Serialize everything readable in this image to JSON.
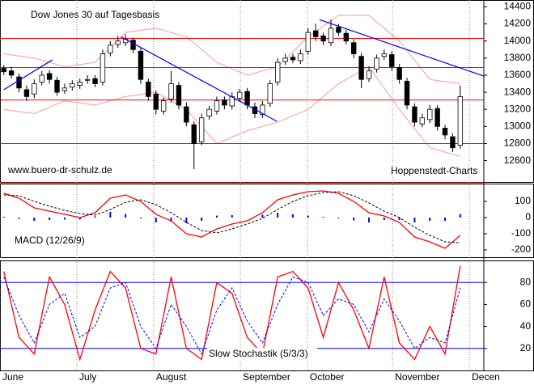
{
  "chart_data": [
    {
      "type": "candlestick",
      "title": "Dow Jones 30 auf Tagesbasis",
      "source": "www.buero-dr-schulz.de",
      "credit": "Hoppenstedt-Charts",
      "ylim": [
        12350,
        14480
      ],
      "yticks": [
        12600,
        12800,
        13000,
        13200,
        13400,
        13600,
        13800,
        14000,
        14200,
        14400
      ],
      "up_color": "#ffffff",
      "down_color": "#000000",
      "open": [
        13680,
        13650,
        13580,
        13430,
        13380,
        13520,
        13620,
        13540,
        13420,
        13460,
        13480,
        13540,
        13560,
        13520,
        13860,
        13960,
        13980,
        14010,
        13880,
        13520,
        13380,
        13180,
        13320,
        13480,
        13230,
        13020,
        12820,
        13120,
        13180,
        13310,
        13240,
        13330,
        13410,
        13230,
        13140,
        13270,
        13520,
        13760,
        13810,
        13770,
        13880,
        14120,
        14060,
        13980,
        14160,
        14090,
        13980,
        13820,
        13560,
        13670,
        13820,
        13840,
        13690,
        13530,
        13230,
        13030,
        13080,
        13210,
        12980,
        12880,
        12780
      ],
      "high": [
        13720,
        13700,
        13620,
        13480,
        13550,
        13650,
        13660,
        13580,
        13500,
        13540,
        13560,
        13600,
        13600,
        13900,
        14000,
        14060,
        14080,
        14040,
        13920,
        13560,
        13420,
        13340,
        13650,
        13520,
        13280,
        13060,
        13150,
        13240,
        13350,
        13350,
        13400,
        13440,
        13450,
        13280,
        13300,
        13540,
        13800,
        13850,
        13850,
        13900,
        14150,
        14200,
        14100,
        14250,
        14200,
        14130,
        14020,
        13860,
        13700,
        13840,
        13900,
        13880,
        13730,
        13570,
        13270,
        13150,
        13250,
        13250,
        13020,
        12920,
        13480
      ],
      "low": [
        13600,
        13560,
        13400,
        13300,
        13330,
        13480,
        13500,
        13360,
        13380,
        13420,
        13440,
        13500,
        13460,
        13480,
        13820,
        13920,
        13940,
        13860,
        13500,
        13300,
        13140,
        13140,
        13280,
        13200,
        13000,
        12500,
        12780,
        13080,
        13140,
        13200,
        13200,
        13290,
        13200,
        13100,
        13100,
        13230,
        13480,
        13720,
        13740,
        13730,
        13840,
        14000,
        13950,
        13940,
        14060,
        13960,
        13800,
        13450,
        13520,
        13630,
        13780,
        13650,
        13500,
        13200,
        13000,
        12990,
        13040,
        12950,
        12850,
        12700,
        12740
      ],
      "close": [
        13640,
        13600,
        13450,
        13350,
        13500,
        13600,
        13550,
        13400,
        13450,
        13500,
        13520,
        13550,
        13500,
        13850,
        13950,
        14000,
        14020,
        13900,
        13550,
        13350,
        13200,
        13300,
        13500,
        13250,
        13050,
        12800,
        13100,
        13200,
        13300,
        13250,
        13350,
        13400,
        13250,
        13150,
        13250,
        13500,
        13750,
        13800,
        13780,
        13850,
        14100,
        14050,
        14000,
        14150,
        14100,
        14000,
        13850,
        13550,
        13650,
        13800,
        13850,
        13700,
        13550,
        13250,
        13050,
        13100,
        13200,
        13000,
        12900,
        12750,
        13350
      ],
      "bands": {
        "color": "#ff9999",
        "x": [
          0,
          4,
          8,
          12,
          16,
          20,
          24,
          28,
          32,
          36,
          40,
          44,
          48,
          52,
          56,
          60
        ],
        "upper": [
          13850,
          13800,
          13700,
          13750,
          14100,
          14150,
          14050,
          13750,
          13600,
          13700,
          14050,
          14300,
          14300,
          14000,
          13550,
          13500
        ],
        "lower": [
          13200,
          13150,
          13300,
          13250,
          13350,
          13400,
          13200,
          12800,
          12950,
          13050,
          13200,
          13500,
          13700,
          13200,
          12750,
          12650
        ]
      },
      "levels": {
        "color": "#ff0000",
        "values": [
          14030,
          13690,
          13310,
          12800
        ]
      },
      "trendlines": {
        "color": "#0000ff",
        "lines": [
          {
            "x": [
              0,
              6.4
            ],
            "y": [
              13430,
              13780
            ]
          },
          {
            "x": [
              15.4,
              35.9
            ],
            "y": [
              14050,
              13060
            ]
          },
          {
            "x": [
              41.5,
              63.1
            ],
            "y": [
              14250,
              13590
            ]
          }
        ]
      }
    },
    {
      "type": "macd",
      "title": "MACD (12/26/9)",
      "ylim": [
        -245,
        210
      ],
      "yticks": [
        -200,
        -100,
        0,
        100
      ],
      "x": [
        0,
        2,
        4,
        6,
        8,
        10,
        12,
        14,
        16,
        18,
        20,
        22,
        24,
        26,
        28,
        30,
        32,
        34,
        36,
        38,
        40,
        42,
        44,
        46,
        48,
        50,
        52,
        54,
        56,
        58,
        60
      ],
      "series": [
        {
          "color": "#0000ff",
          "style": "bar",
          "values": [
            5,
            -8,
            -20,
            -15,
            -12,
            -12,
            8,
            35,
            22,
            -5,
            -30,
            -25,
            -35,
            -20,
            12,
            15,
            0,
            18,
            30,
            20,
            12,
            5,
            -5,
            -18,
            -30,
            -15,
            -15,
            -30,
            -20,
            -20,
            22
          ]
        },
        {
          "color": "#ff0000",
          "style": "line",
          "values": [
            150,
            120,
            60,
            40,
            20,
            0,
            30,
            120,
            140,
            100,
            20,
            -20,
            -100,
            -120,
            -70,
            -40,
            -20,
            30,
            110,
            140,
            160,
            165,
            150,
            100,
            30,
            10,
            -30,
            -120,
            -150,
            -190,
            -110
          ]
        },
        {
          "color": "#000000",
          "style": "dash",
          "values": [
            140,
            135,
            100,
            70,
            45,
            25,
            15,
            50,
            95,
            110,
            80,
            30,
            -30,
            -80,
            -95,
            -70,
            -40,
            -5,
            50,
            100,
            135,
            155,
            160,
            135,
            90,
            40,
            0,
            -60,
            -110,
            -150,
            -155
          ]
        }
      ]
    },
    {
      "type": "stochastic",
      "title": "Slow Stochastik (5/3/3)",
      "ylim": [
        0,
        100
      ],
      "yticks": [
        20,
        40,
        60,
        80
      ],
      "xlim": [
        -0.5,
        63.1
      ],
      "xticks": [
        {
          "value": -0.5,
          "label": "June"
        },
        {
          "value": 9.6,
          "label": "July"
        },
        {
          "value": 19.7,
          "label": "August"
        },
        {
          "value": 31.1,
          "label": "September"
        },
        {
          "value": 39.9,
          "label": "October"
        },
        {
          "value": 51.1,
          "label": "November"
        },
        {
          "value": 61.2,
          "label": "Decen"
        }
      ],
      "levels": {
        "color": "#0000ff",
        "values": [
          80,
          20
        ]
      },
      "x": [
        0,
        2,
        4,
        6,
        8,
        10,
        12,
        14,
        16,
        18,
        20,
        22,
        24,
        26,
        28,
        30,
        32,
        34,
        36,
        38,
        40,
        42,
        44,
        46,
        48,
        50,
        52,
        54,
        56,
        58,
        60
      ],
      "series": [
        {
          "color": "#ff0000",
          "style": "line",
          "values": [
            90,
            30,
            15,
            85,
            60,
            10,
            55,
            90,
            75,
            20,
            15,
            85,
            20,
            10,
            80,
            70,
            30,
            15,
            85,
            90,
            75,
            30,
            80,
            55,
            20,
            85,
            25,
            10,
            40,
            15,
            95
          ]
        },
        {
          "color": "#0000ff",
          "style": "dash",
          "values": [
            85,
            50,
            25,
            60,
            70,
            30,
            40,
            75,
            80,
            40,
            20,
            60,
            40,
            15,
            55,
            75,
            45,
            25,
            60,
            85,
            80,
            50,
            65,
            60,
            35,
            65,
            45,
            20,
            30,
            25,
            75
          ]
        }
      ]
    }
  ]
}
